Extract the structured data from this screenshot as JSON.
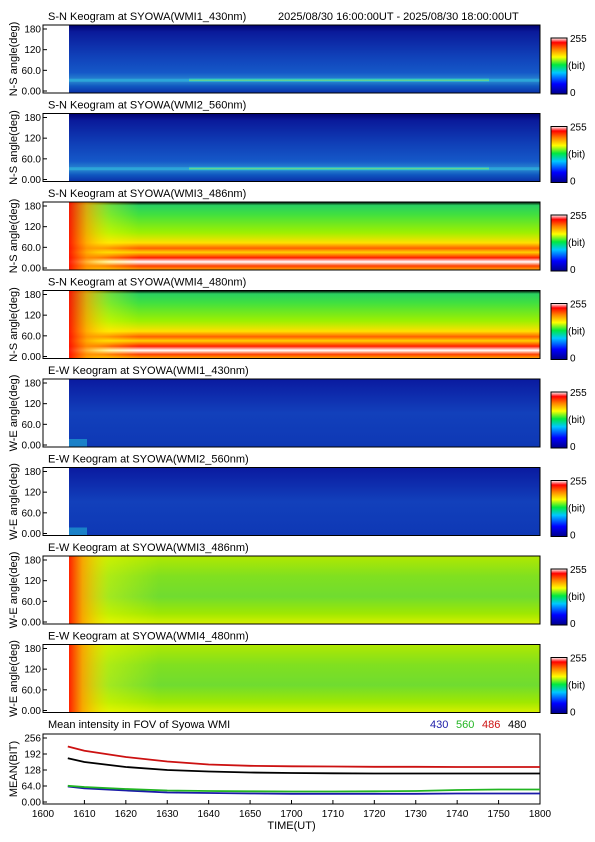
{
  "header": {
    "time_range": "2025/08/30 16:00:00UT - 2025/08/30 18:00:00UT"
  },
  "keograms": [
    {
      "title": "S-N Keogram at SYOWA(WMI1_430nm)",
      "ylabel": "N-S angle(deg)",
      "type": "low",
      "strip": [
        0.28,
        0.55
      ],
      "bright_band": true
    },
    {
      "title": "S-N Keogram at SYOWA(WMI2_560nm)",
      "ylabel": "N-S angle(deg)",
      "type": "low",
      "strip": [
        0.3,
        0.6
      ],
      "bright_band": true
    },
    {
      "title": "S-N Keogram at SYOWA(WMI3_486nm)",
      "ylabel": "N-S angle(deg)",
      "type": "high_sn",
      "strip": [],
      "bright_band": false
    },
    {
      "title": "S-N Keogram at SYOWA(WMI4_480nm)",
      "ylabel": "N-S angle(deg)",
      "type": "high_sn",
      "strip": [],
      "bright_band": false
    },
    {
      "title": "E-W Keogram at SYOWA(WMI1_430nm)",
      "ylabel": "W-E angle(deg)",
      "type": "low_ew",
      "strip": [],
      "bright_band": false
    },
    {
      "title": "E-W Keogram at SYOWA(WMI2_560nm)",
      "ylabel": "W-E angle(deg)",
      "type": "low_ew",
      "strip": [],
      "bright_band": false
    },
    {
      "title": "E-W Keogram at SYOWA(WMI3_486nm)",
      "ylabel": "W-E angle(deg)",
      "type": "high_ew",
      "strip": [],
      "bright_band": false
    },
    {
      "title": "E-W Keogram at SYOWA(WMI4_480nm)",
      "ylabel": "W-E angle(deg)",
      "type": "high_ew",
      "strip": [],
      "bright_band": false
    }
  ],
  "keogram_yticks": [
    "0.00",
    "60.0",
    "120",
    "180"
  ],
  "colorbar": {
    "max_label": "255",
    "unit_label": "(bit)",
    "min_label": "0"
  },
  "mean_panel": {
    "title": "Mean intensity in FOV of Syowa WMI",
    "ylabel": "MEAN(BIT)",
    "legend": [
      {
        "label": "430",
        "color": "#1a1aa8"
      },
      {
        "label": "560",
        "color": "#22b522"
      },
      {
        "label": "486",
        "color": "#cc1111"
      },
      {
        "label": "480",
        "color": "#000000"
      }
    ]
  },
  "x_axis": {
    "label": "TIME(UT)",
    "ticks": [
      "1600",
      "1610",
      "1620",
      "1630",
      "1640",
      "1650",
      "1700",
      "1710",
      "1720",
      "1730",
      "1740",
      "1750",
      "1800"
    ]
  },
  "chart_data": {
    "type": "line",
    "title": "Mean intensity in FOV of Syowa WMI",
    "xlabel": "TIME(UT)",
    "ylabel": "MEAN(BIT)",
    "x_range_minutes": [
      0,
      120
    ],
    "ylim": [
      0,
      256
    ],
    "yticks": [
      0,
      64,
      128,
      192,
      256
    ],
    "series": [
      {
        "name": "430",
        "color": "#1a1aa8",
        "x": [
          6,
          10,
          20,
          30,
          40,
          50,
          60,
          70,
          80,
          90,
          100,
          110,
          120
        ],
        "values": [
          62,
          55,
          46,
          38,
          36,
          34,
          33,
          33,
          33,
          33,
          34,
          34,
          34
        ]
      },
      {
        "name": "560",
        "color": "#22b522",
        "x": [
          6,
          10,
          20,
          30,
          40,
          50,
          60,
          70,
          80,
          90,
          100,
          110,
          120
        ],
        "values": [
          65,
          60,
          52,
          46,
          44,
          43,
          42,
          42,
          43,
          44,
          48,
          50,
          50
        ]
      },
      {
        "name": "486",
        "color": "#cc1111",
        "x": [
          6,
          10,
          20,
          30,
          40,
          50,
          60,
          70,
          80,
          90,
          100,
          110,
          120
        ],
        "values": [
          222,
          205,
          180,
          162,
          150,
          145,
          143,
          142,
          141,
          141,
          140,
          140,
          140
        ]
      },
      {
        "name": "480",
        "color": "#000000",
        "x": [
          6,
          10,
          20,
          30,
          40,
          50,
          60,
          70,
          80,
          90,
          100,
          110,
          120
        ],
        "values": [
          175,
          160,
          140,
          128,
          122,
          118,
          116,
          115,
          114,
          114,
          114,
          114,
          114
        ]
      }
    ]
  }
}
